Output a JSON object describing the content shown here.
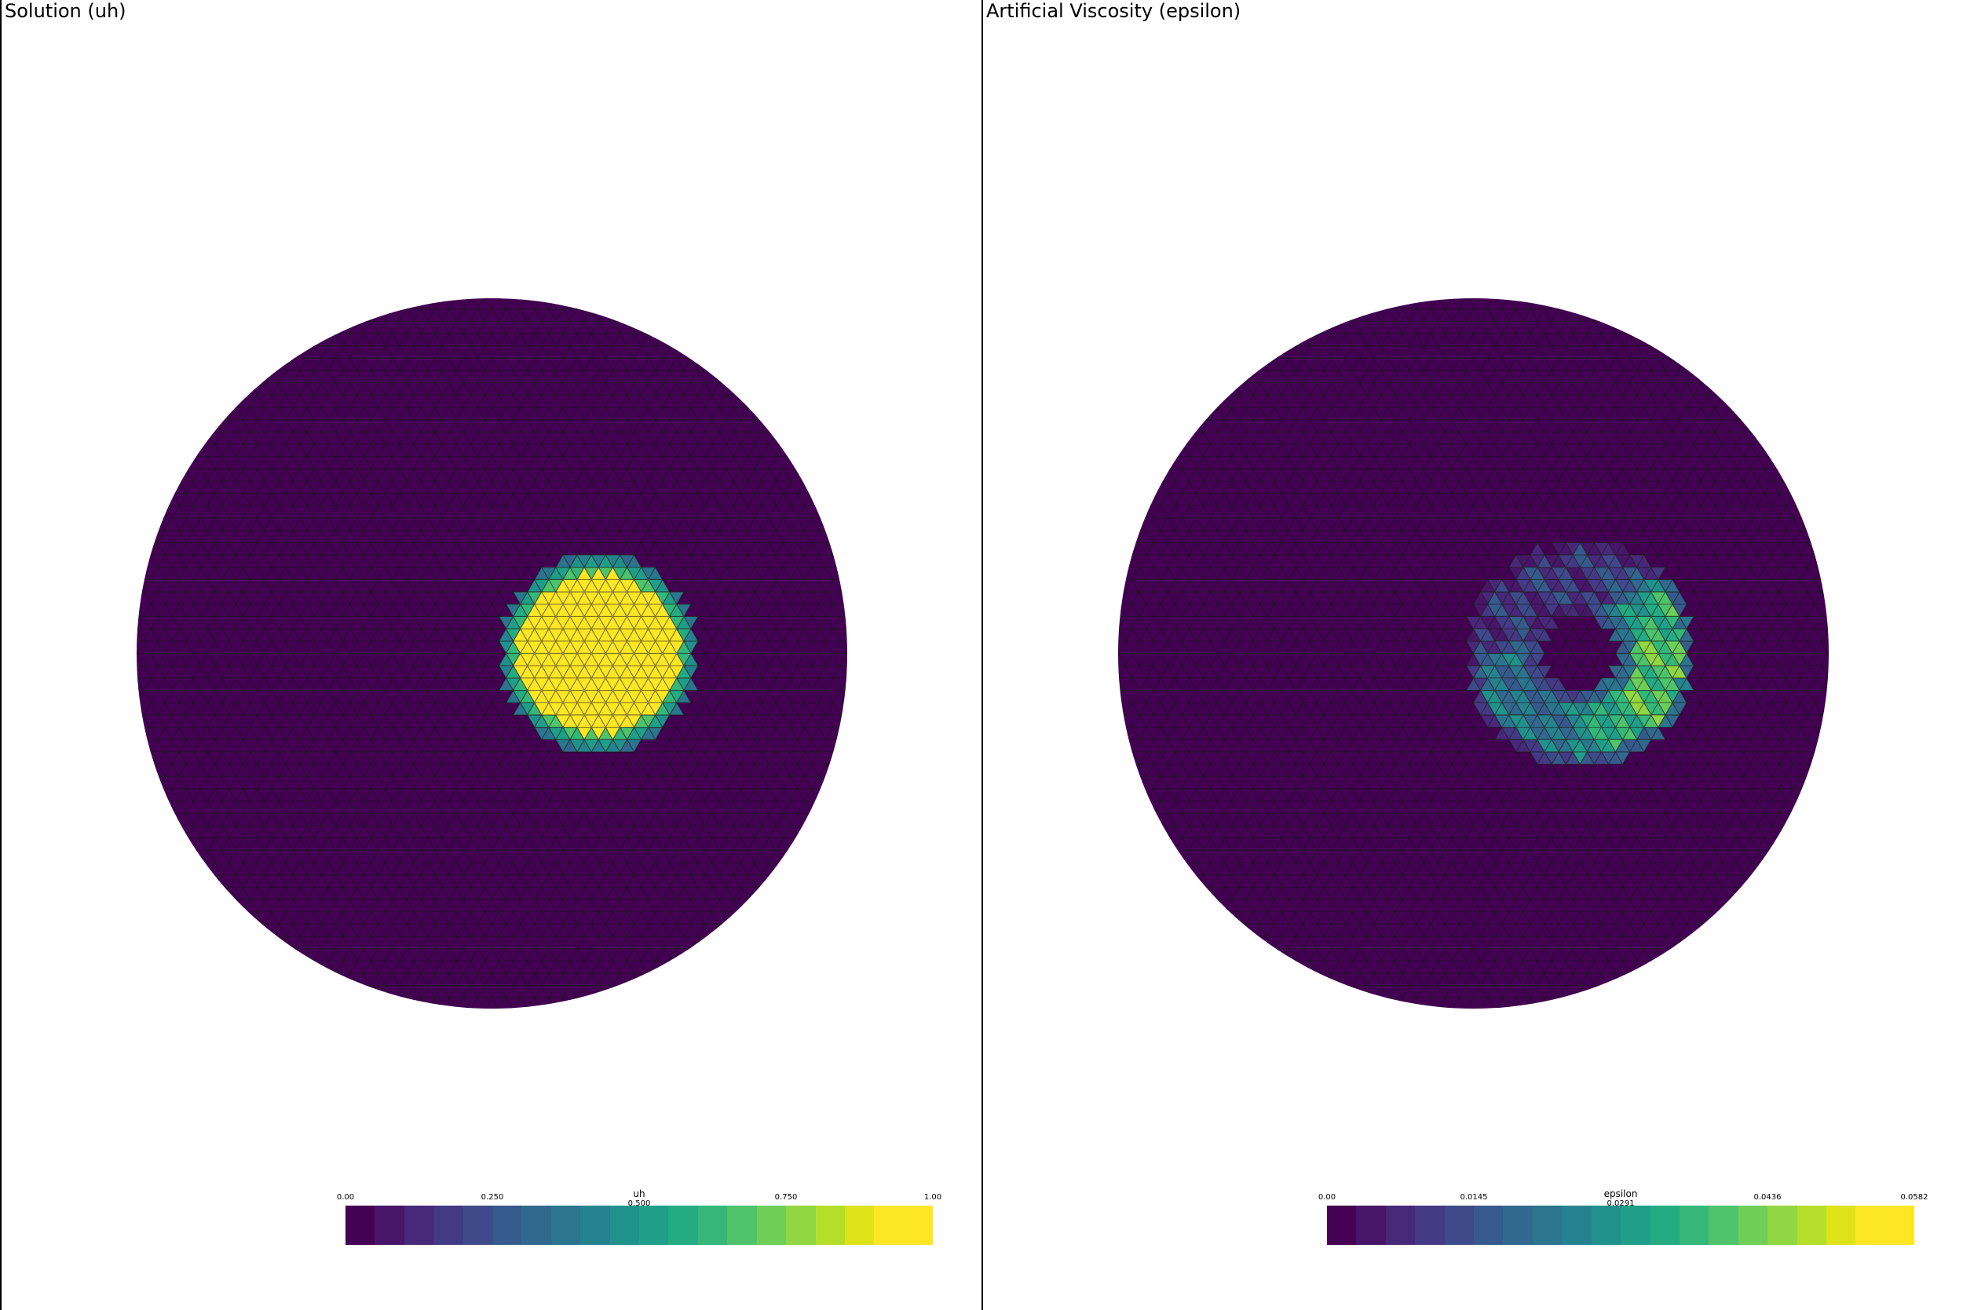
{
  "viewports": [
    {
      "title": "Solution (uh)",
      "field": "uh",
      "colorbar": {
        "title": "uh",
        "ticks": [
          "0.00",
          "0.250",
          "0.500",
          "0.750",
          "1.00"
        ],
        "range": [
          0,
          1
        ]
      }
    },
    {
      "title": "Artificial Viscosity (epsilon)",
      "field": "epsilon",
      "colorbar": {
        "title": "epsilon",
        "ticks": [
          "0.00",
          "0.0145",
          "0.0291",
          "0.0436",
          "0.0582"
        ],
        "range": [
          0,
          0.0582
        ]
      }
    }
  ],
  "colormap": {
    "name": "viridis",
    "colors": [
      "#440154",
      "#481668",
      "#482878",
      "#443983",
      "#3e4a89",
      "#375a8c",
      "#31688e",
      "#2b758e",
      "#26828e",
      "#21918c",
      "#1f9e89",
      "#25ab82",
      "#35b779",
      "#4ec36b",
      "#6ece58",
      "#90d743",
      "#b5de2b",
      "#dde318",
      "#fde725",
      "#fde725"
    ]
  },
  "mesh_edge_color": "#1a1a1a",
  "background_color": "#ffffff"
}
